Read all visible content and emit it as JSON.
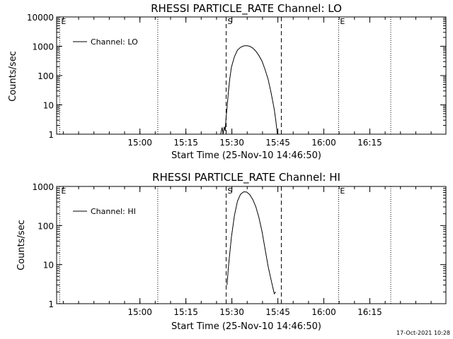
{
  "chart_data": [
    {
      "type": "line",
      "title": "RHESSI PARTICLE_RATE Channel: LO",
      "xlabel": "Start Time (25-Nov-10 14:46:50)",
      "ylabel": "Counts/sec",
      "yscale": "log",
      "ylim": [
        1,
        10000
      ],
      "xlim_min": [
        -14,
        113
      ],
      "x_units": "minutes after 14:46:50",
      "x_ticks": [
        {
          "label": "15:00",
          "x": 13.17
        },
        {
          "label": "15:15",
          "x": 28.17
        },
        {
          "label": "15:30",
          "x": 43.17
        },
        {
          "label": "15:45",
          "x": 58.17
        },
        {
          "label": "16:00",
          "x": 73.17
        },
        {
          "label": "16:15",
          "x": 88.17
        }
      ],
      "y_ticks": [
        {
          "label": "1",
          "v": 1
        },
        {
          "label": "10",
          "v": 10
        },
        {
          "label": "100",
          "v": 100
        },
        {
          "label": "1000",
          "v": 1000
        },
        {
          "label": "10000",
          "v": 10000
        }
      ],
      "legend": {
        "label": "Channel: LO",
        "placement": "top-left"
      },
      "markers": [
        {
          "label": "E",
          "x": -13.0,
          "style": "dotted"
        },
        {
          "label": "",
          "x": 19.0,
          "style": "dotted"
        },
        {
          "label": "S",
          "x": 41.3,
          "style": "dashed"
        },
        {
          "label": "",
          "x": 59.3,
          "style": "dashed"
        },
        {
          "label": "E",
          "x": 78.0,
          "style": "dotted"
        },
        {
          "label": "",
          "x": 95.0,
          "style": "dotted"
        }
      ],
      "series": [
        {
          "name": "Channel: LO",
          "x": [
            39.5,
            40.0,
            40.3,
            40.7,
            41.0,
            41.3,
            41.6,
            42.0,
            42.5,
            43.0,
            44.0,
            45.0,
            46.0,
            47.0,
            48.0,
            49.0,
            50.0,
            51.0,
            52.0,
            53.0,
            54.0,
            55.0,
            56.0,
            57.0,
            57.5,
            58.0
          ],
          "y": [
            1,
            1.7,
            1,
            1.8,
            1.3,
            4,
            8,
            25,
            80,
            190,
            440,
            740,
            920,
            1030,
            1050,
            1000,
            860,
            680,
            480,
            310,
            160,
            75,
            25,
            7,
            3,
            1
          ]
        }
      ]
    },
    {
      "type": "line",
      "title": "RHESSI PARTICLE_RATE Channel: HI",
      "xlabel": "Start Time (25-Nov-10 14:46:50)",
      "ylabel": "Counts/sec",
      "yscale": "log",
      "ylim": [
        1,
        1000
      ],
      "xlim_min": [
        -14,
        113
      ],
      "x_units": "minutes after 14:46:50",
      "x_ticks": [
        {
          "label": "15:00",
          "x": 13.17
        },
        {
          "label": "15:15",
          "x": 28.17
        },
        {
          "label": "15:30",
          "x": 43.17
        },
        {
          "label": "15:45",
          "x": 58.17
        },
        {
          "label": "16:00",
          "x": 73.17
        },
        {
          "label": "16:15",
          "x": 88.17
        }
      ],
      "y_ticks": [
        {
          "label": "1",
          "v": 1
        },
        {
          "label": "10",
          "v": 10
        },
        {
          "label": "100",
          "v": 100
        },
        {
          "label": "1000",
          "v": 1000
        }
      ],
      "legend": {
        "label": "Channel: HI",
        "placement": "top-left"
      },
      "markers": [
        {
          "label": "E",
          "x": -13.0,
          "style": "dotted"
        },
        {
          "label": "",
          "x": 19.0,
          "style": "dotted"
        },
        {
          "label": "S",
          "x": 41.3,
          "style": "dashed"
        },
        {
          "label": "",
          "x": 59.3,
          "style": "dashed"
        },
        {
          "label": "E",
          "x": 78.0,
          "style": "dotted"
        },
        {
          "label": "",
          "x": 95.0,
          "style": "dotted"
        }
      ],
      "series": [
        {
          "name": "Channel: HI",
          "x": [
            41.6,
            42.0,
            43.0,
            44.0,
            45.0,
            46.0,
            47.0,
            48.0,
            49.0,
            50.0,
            51.0,
            52.0,
            53.0,
            54.0,
            55.0,
            56.0,
            57.0,
            57.5
          ],
          "y": [
            3,
            8,
            50,
            180,
            420,
            630,
            730,
            720,
            620,
            460,
            300,
            160,
            70,
            25,
            9,
            4,
            1.8,
            2
          ]
        }
      ]
    }
  ],
  "footer": {
    "timestamp": "17-Oct-2021 10:28"
  }
}
